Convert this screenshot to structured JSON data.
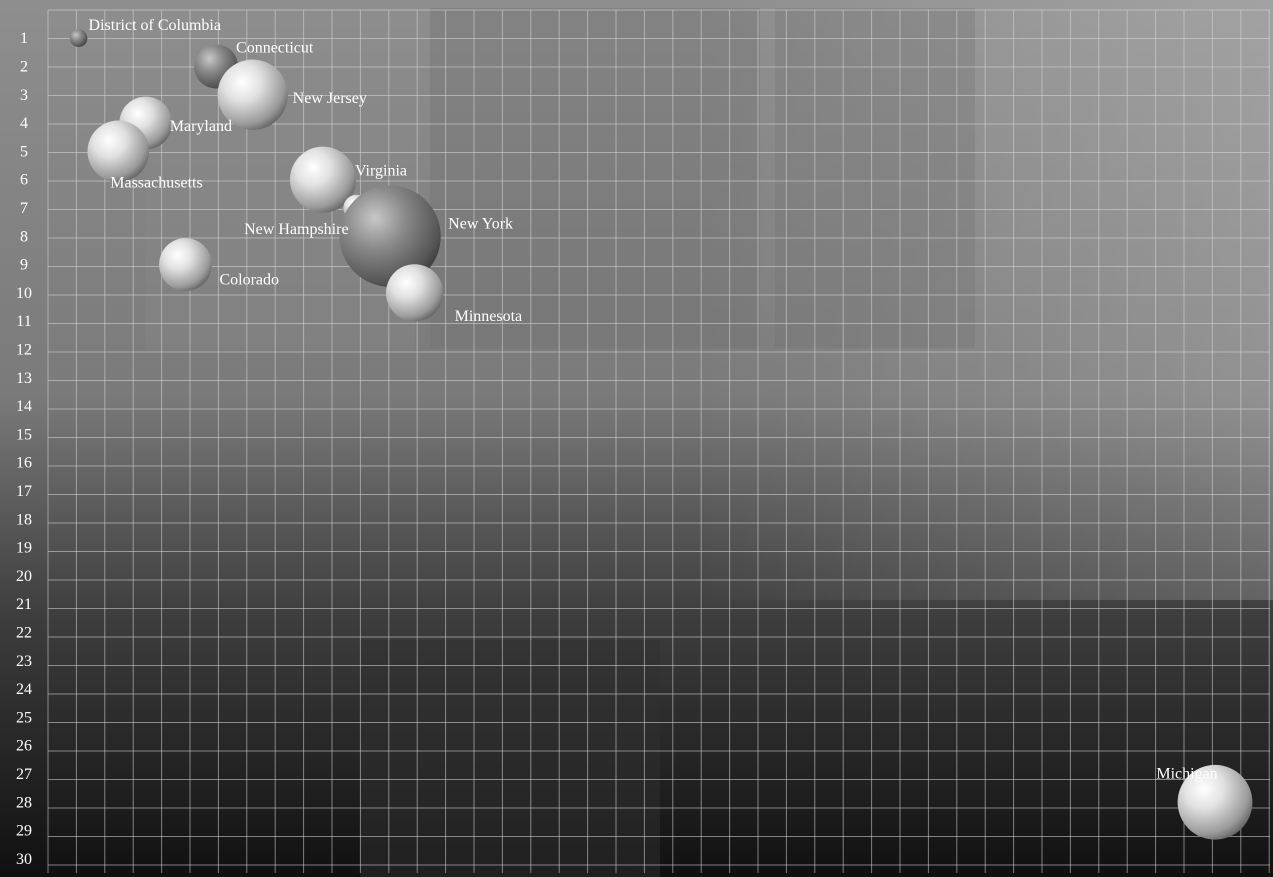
{
  "chart_data": {
    "type": "scatter",
    "title": "",
    "xlabel": "",
    "ylabel": "",
    "y_ticks": [
      1,
      2,
      3,
      4,
      5,
      6,
      7,
      8,
      9,
      10,
      11,
      12,
      13,
      14,
      15,
      16,
      17,
      18,
      19,
      20,
      21,
      22,
      23,
      24,
      25,
      26,
      27,
      28,
      29,
      30
    ],
    "ylim": [
      0.5,
      30.5
    ],
    "xlim": [
      0,
      40
    ],
    "grid": true,
    "legend": "none",
    "series": [
      {
        "points": [
          {
            "label": "District of Columbia",
            "x": 1,
            "y": 1,
            "size": 0.4
          },
          {
            "label": "Connecticut",
            "x": 5.5,
            "y": 2,
            "size": 1.0
          },
          {
            "label": "New Jersey",
            "x": 6.7,
            "y": 3,
            "size": 1.6
          },
          {
            "label": "Maryland",
            "x": 3.2,
            "y": 4,
            "size": 1.2
          },
          {
            "label": "Massachusetts",
            "x": 2.3,
            "y": 5,
            "size": 1.4
          },
          {
            "label": "Virginia",
            "x": 9,
            "y": 6,
            "size": 1.5
          },
          {
            "label": "New Hampshire",
            "x": 10.1,
            "y": 7,
            "size": 0.6
          },
          {
            "label": "New York",
            "x": 11.2,
            "y": 8,
            "size": 2.3
          },
          {
            "label": "Colorado",
            "x": 4.5,
            "y": 9,
            "size": 1.2
          },
          {
            "label": "Minnesota",
            "x": 12,
            "y": 10,
            "size": 1.3
          },
          {
            "label": "Michigan",
            "x": 38.2,
            "y": 28,
            "size": 1.7
          }
        ]
      }
    ]
  }
}
